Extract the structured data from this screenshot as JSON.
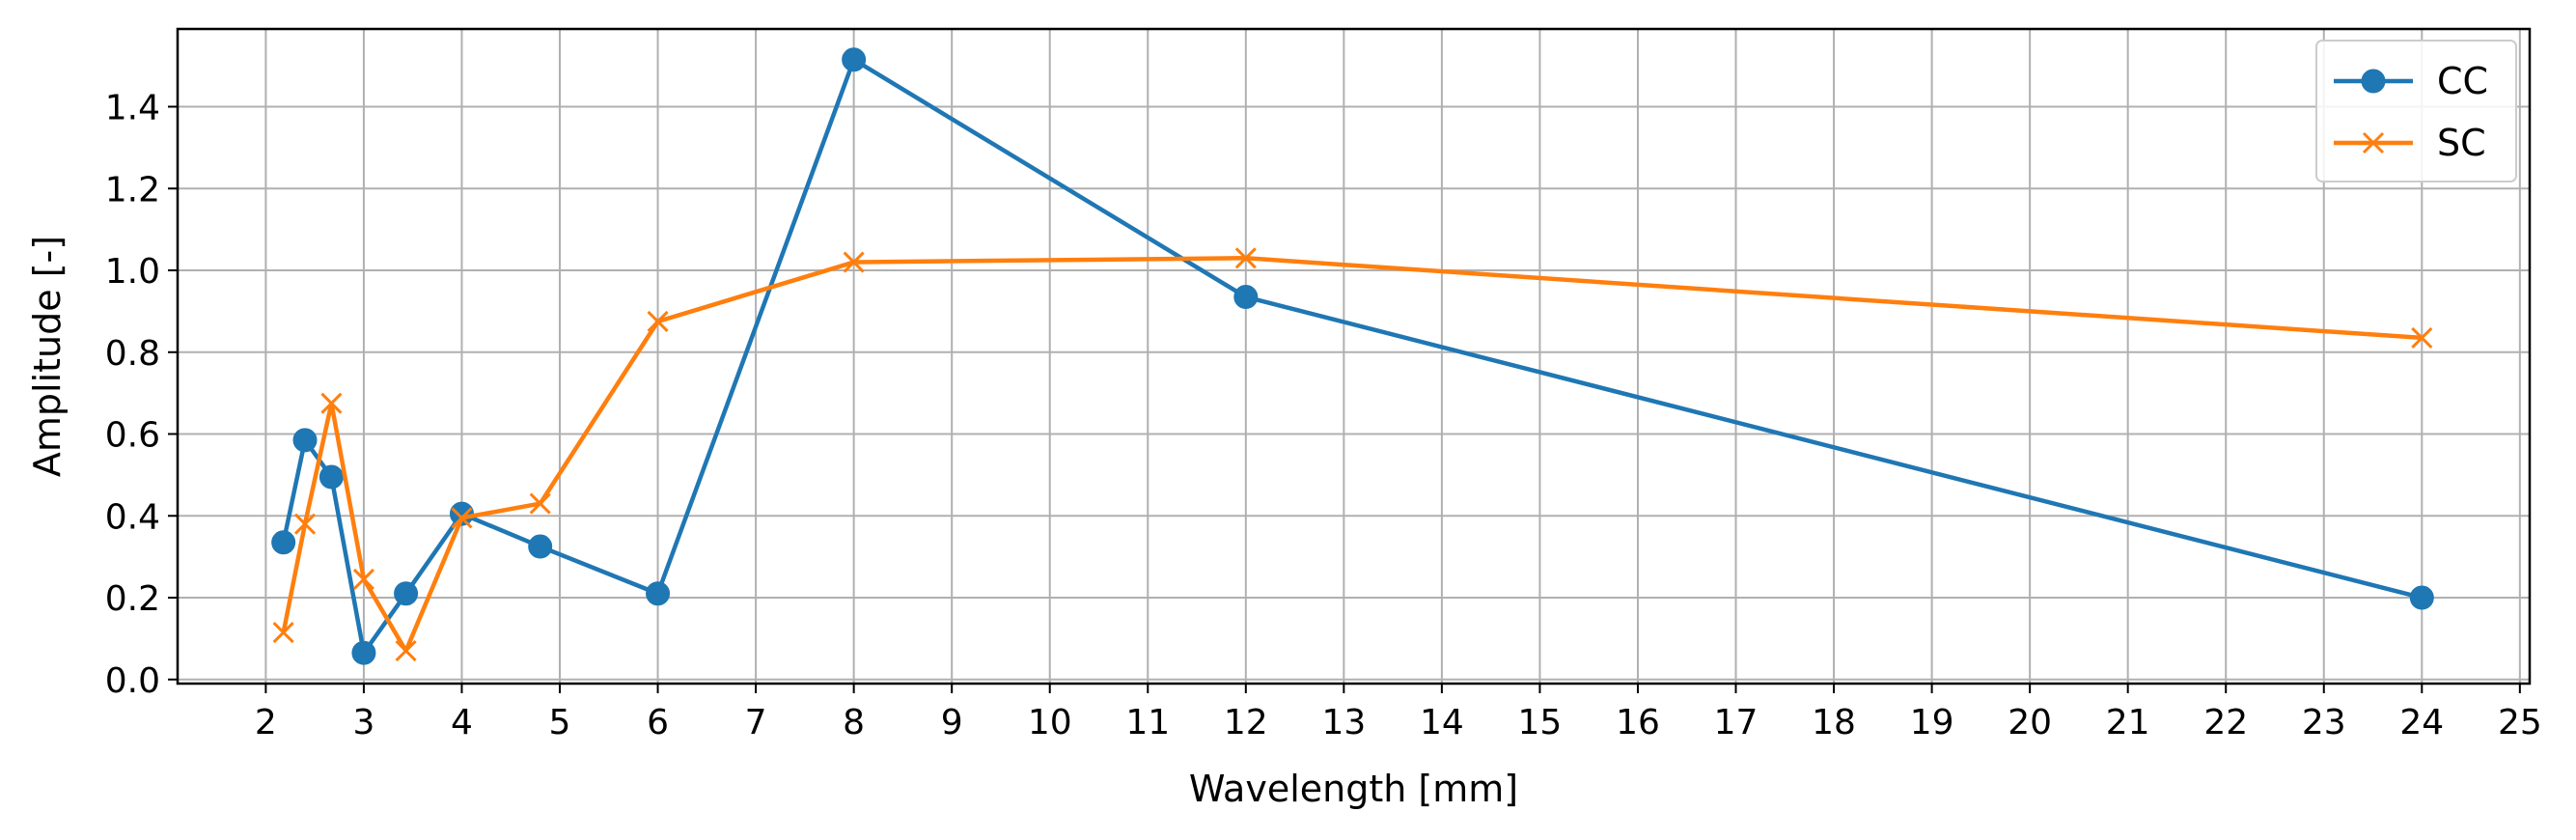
{
  "chart_data": {
    "type": "line",
    "title": "",
    "xlabel": "Wavelength [mm]",
    "ylabel": "Amplitude [-]",
    "xlim": [
      1.1,
      25.1
    ],
    "ylim": [
      -0.01,
      1.59
    ],
    "xticks": [
      2,
      3,
      4,
      5,
      6,
      7,
      8,
      9,
      10,
      11,
      12,
      13,
      14,
      15,
      16,
      17,
      18,
      19,
      20,
      21,
      22,
      23,
      24,
      25
    ],
    "yticks": [
      0.0,
      0.2,
      0.4,
      0.6,
      0.8,
      1.0,
      1.2,
      1.4
    ],
    "ytick_labels": [
      "0.0",
      "0.2",
      "0.4",
      "0.6",
      "0.8",
      "1.0",
      "1.2",
      "1.4"
    ],
    "grid": true,
    "legend_position": "top-right",
    "series": [
      {
        "name": "CC",
        "color": "#1f77b4",
        "marker": "circle",
        "x": [
          2.18,
          2.4,
          2.67,
          3.0,
          3.43,
          4.0,
          4.8,
          6.0,
          8.0,
          12.0,
          24.0
        ],
        "y": [
          0.335,
          0.585,
          0.495,
          0.065,
          0.21,
          0.405,
          0.325,
          0.21,
          1.515,
          0.935,
          0.2
        ]
      },
      {
        "name": "SC",
        "color": "#ff7f0e",
        "marker": "x",
        "x": [
          2.18,
          2.4,
          2.67,
          3.0,
          3.43,
          4.0,
          4.8,
          6.0,
          8.0,
          12.0,
          24.0
        ],
        "y": [
          0.115,
          0.38,
          0.675,
          0.245,
          0.07,
          0.395,
          0.43,
          0.875,
          1.02,
          1.03,
          0.835
        ]
      }
    ]
  }
}
